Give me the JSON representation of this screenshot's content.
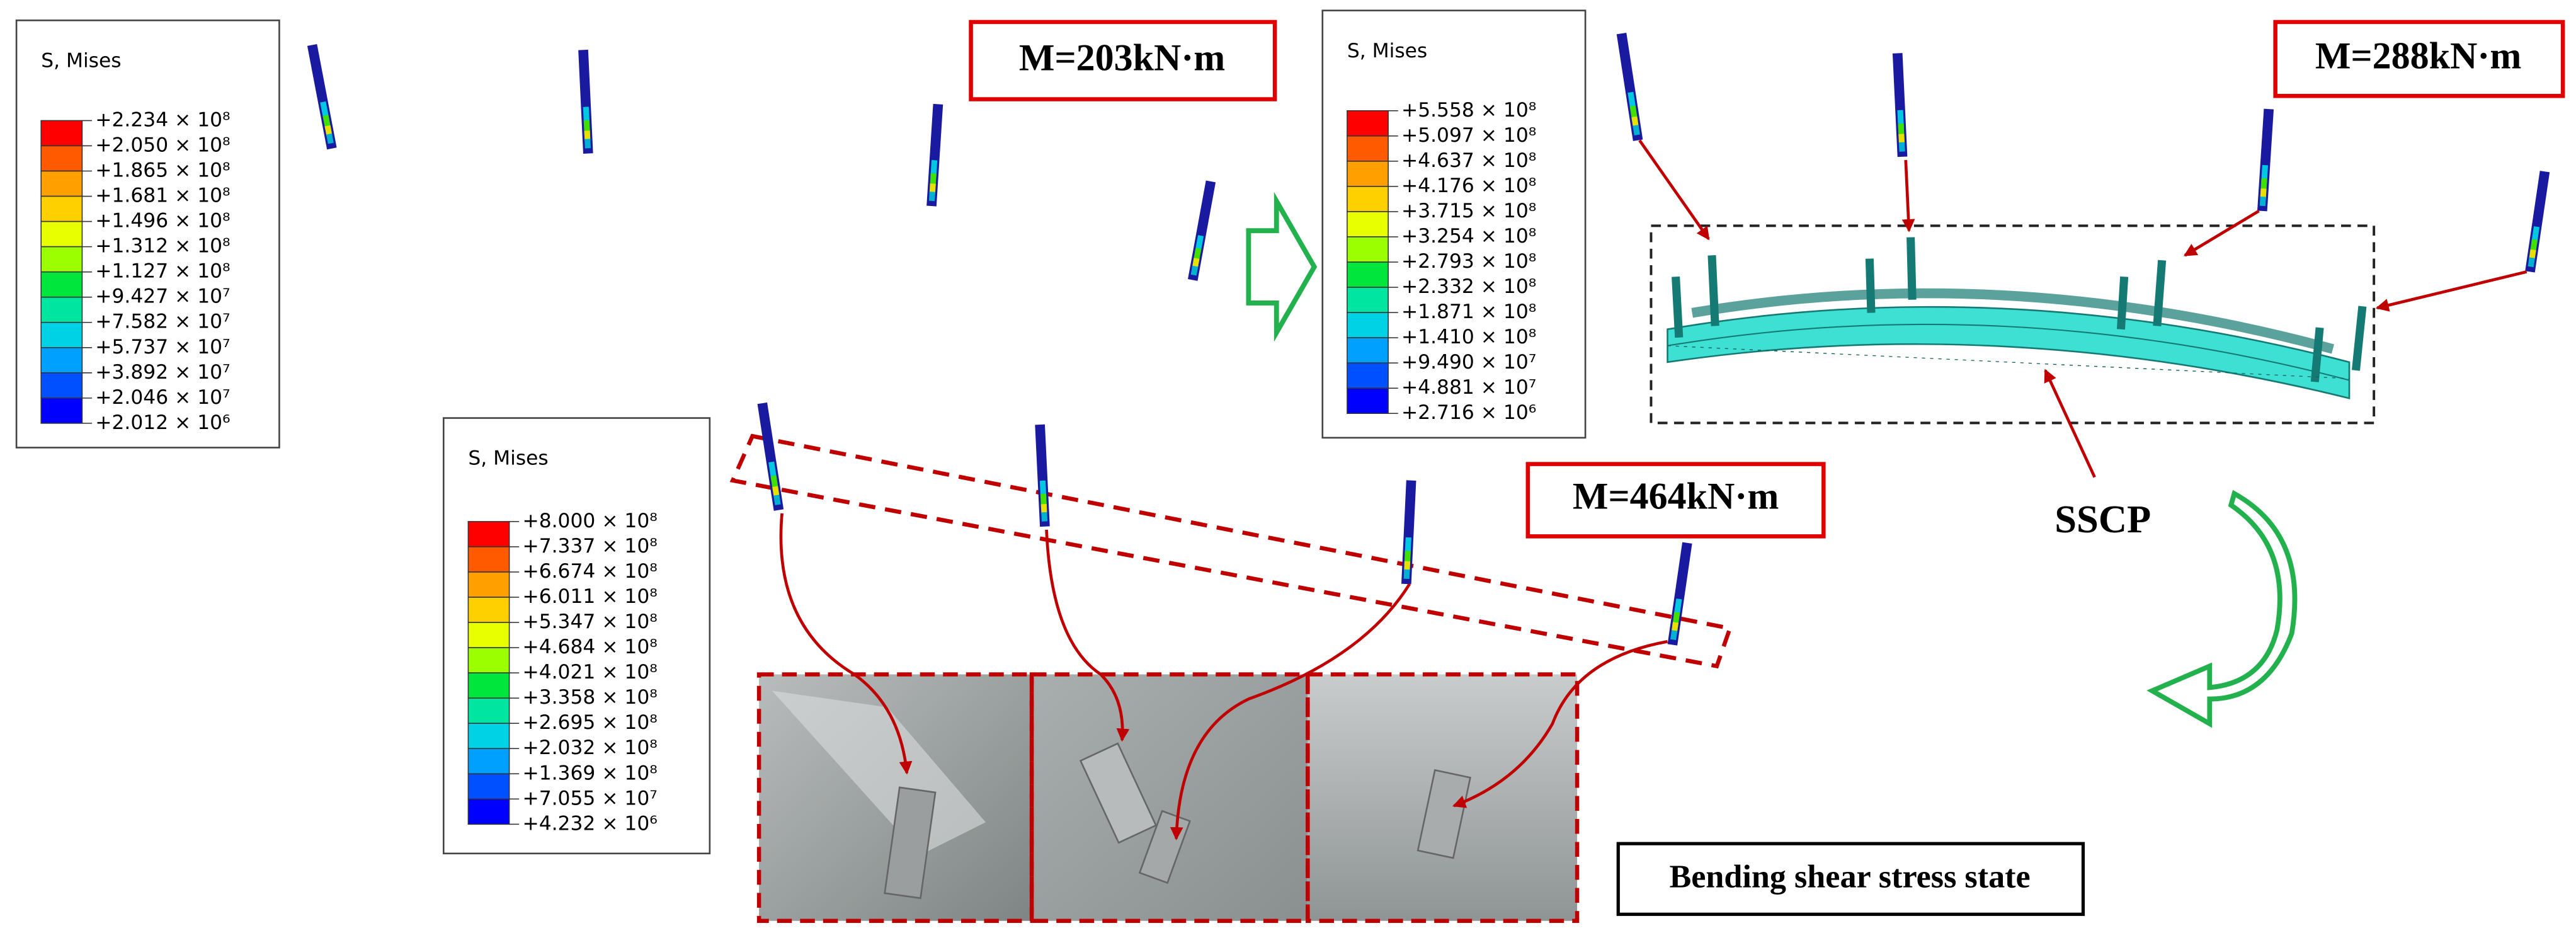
{
  "legends": [
    {
      "title": "S, Mises",
      "labels": [
        "+2.234 × 10⁸",
        "+2.050 × 10⁸",
        "+1.865 × 10⁸",
        "+1.681 × 10⁸",
        "+1.496 × 10⁸",
        "+1.312 × 10⁸",
        "+1.127 × 10⁸",
        "+9.427 × 10⁷",
        "+7.582 × 10⁷",
        "+5.737 × 10⁷",
        "+3.892 × 10⁷",
        "+2.046 × 10⁷",
        "+2.012 × 10⁶"
      ]
    },
    {
      "title": "S, Mises",
      "labels": [
        "+5.558 × 10⁸",
        "+5.097 × 10⁸",
        "+4.637 × 10⁸",
        "+4.176 × 10⁸",
        "+3.715 × 10⁸",
        "+3.254 × 10⁸",
        "+2.793 × 10⁸",
        "+2.332 × 10⁸",
        "+1.871 × 10⁸",
        "+1.410 × 10⁸",
        "+9.490 × 10⁷",
        "+4.881 × 10⁷",
        "+2.716 × 10⁶"
      ]
    },
    {
      "title": "S, Mises",
      "labels": [
        "+8.000 × 10⁸",
        "+7.337 × 10⁸",
        "+6.674 × 10⁸",
        "+6.011 × 10⁸",
        "+5.347 × 10⁸",
        "+4.684 × 10⁸",
        "+4.021 × 10⁸",
        "+3.358 × 10⁸",
        "+2.695 × 10⁸",
        "+2.032 × 10⁸",
        "+1.369 × 10⁸",
        "+7.055 × 10⁷",
        "+4.232 × 10⁶"
      ]
    }
  ],
  "moments": [
    "M=203kN·m",
    "M=288kN·m",
    "M=464kN·m"
  ],
  "beam_label": "SSCP",
  "state_label": "Bending shear stress state"
}
